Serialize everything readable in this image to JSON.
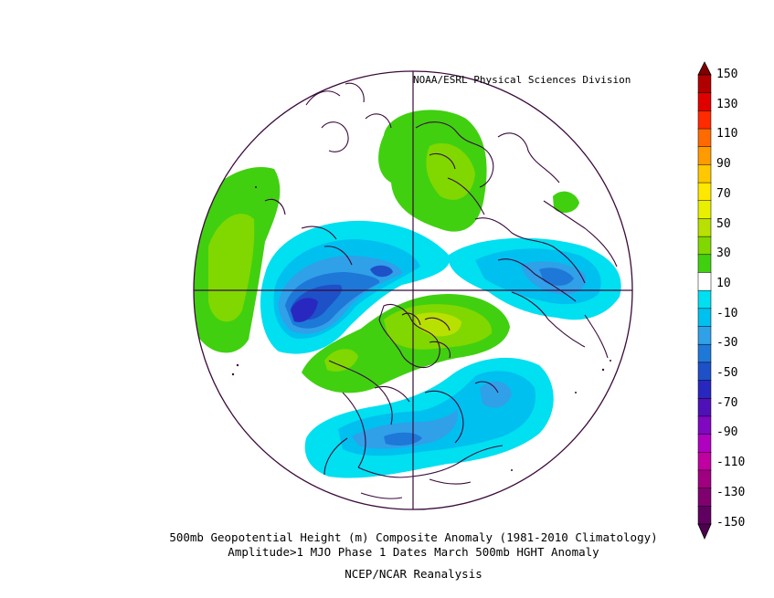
{
  "credit": "NOAA/ESRL Physical Sciences Division",
  "caption": {
    "line1": "500mb Geopotential Height (m) Composite Anomaly (1981-2010 Climatology)",
    "line2": "Amplitude>1 MJO Phase 1 Dates March 500mb HGHT Anomaly",
    "line3": "NCEP/NCAR Reanalysis"
  },
  "colorbar": {
    "labels": [
      "150",
      "130",
      "110",
      "90",
      "70",
      "50",
      "30",
      "10",
      "-10",
      "-30",
      "-50",
      "-70",
      "-90",
      "-110",
      "-130",
      "-150"
    ],
    "colors": [
      "#b00000",
      "#e00000",
      "#ff2a00",
      "#ff6a00",
      "#ff9a00",
      "#ffc800",
      "#ffe800",
      "#e8f000",
      "#b8e000",
      "#80d800",
      "#40d010",
      "#ffffff",
      "#00e0f0",
      "#00c0f0",
      "#30a0e8",
      "#1e78d8",
      "#1e50c8",
      "#2828c0",
      "#5010b8",
      "#8008c0",
      "#b000c0",
      "#c000a0",
      "#a00080",
      "#800070",
      "#600060"
    ],
    "top_arrow_color": "#800000",
    "bottom_arrow_color": "#500050"
  },
  "map": {
    "projection": "north-polar-stereographic",
    "anomaly_regions": [
      {
        "region": "Scandinavia / western Europe",
        "sign": "positive",
        "peak_m": 30
      },
      {
        "region": "North Atlantic / Greenland to Canada",
        "sign": "negative",
        "peak_m": -70
      },
      {
        "region": "Hudson Bay / central Canada",
        "sign": "positive",
        "peak_m": 50
      },
      {
        "region": "Eastern United States / western Atlantic",
        "sign": "negative",
        "peak_m": -50
      },
      {
        "region": "Northern Russia / Siberia",
        "sign": "negative",
        "peak_m": -50
      },
      {
        "region": "Eastern Europe / Middle East",
        "sign": "positive",
        "peak_m": 30
      },
      {
        "region": "Central Pacific / Aleutians",
        "sign": "positive",
        "peak_m": 30
      }
    ]
  }
}
